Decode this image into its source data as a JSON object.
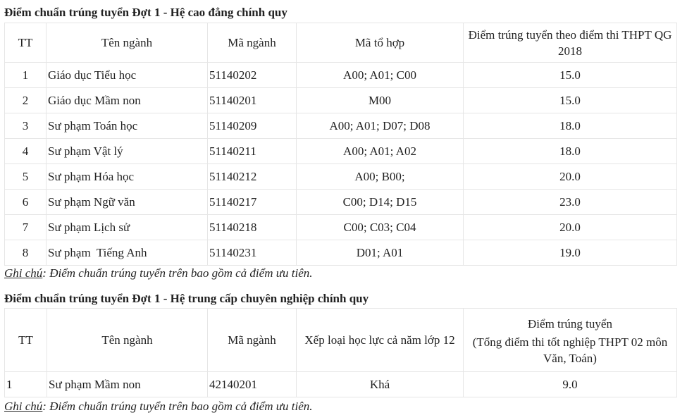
{
  "section1": {
    "title": "Điểm chuẩn trúng tuyển Đợt 1 - Hệ cao đẳng chính quy",
    "headers": [
      "TT",
      "Tên ngành",
      "Mã ngành",
      "Mã tổ hợp",
      "Điểm trúng tuyển theo điểm thi THPT QG 2018"
    ],
    "rows": [
      [
        "1",
        "Giáo dục Tiểu học",
        "51140202",
        "A00; A01; C00",
        "15.0"
      ],
      [
        "2",
        "Giáo dục Mầm non",
        "51140201",
        "M00",
        "15.0"
      ],
      [
        "3",
        "Sư phạm Toán học",
        "51140209",
        "A00; A01; D07; D08",
        "18.0"
      ],
      [
        "4",
        "Sư phạm Vật lý",
        "51140211",
        "A00; A01; A02",
        "18.0"
      ],
      [
        "5",
        "Sư phạm Hóa học",
        "51140212",
        "A00; B00;",
        "20.0"
      ],
      [
        "6",
        "Sư phạm Ngữ văn",
        "51140217",
        "C00; D14; D15",
        "23.0"
      ],
      [
        "7",
        "Sư phạm Lịch sử",
        "51140218",
        "C00; C03; C04",
        "20.0"
      ],
      [
        "8",
        "Sư phạm  Tiếng Anh",
        "51140231",
        "D01; A01",
        "19.0"
      ]
    ],
    "note_label": "Ghi chú",
    "note_text": ": Điểm chuẩn trúng tuyển trên bao gồm cả điểm ưu tiên."
  },
  "section2": {
    "title": "Điểm chuẩn trúng tuyển Đợt 1 - Hệ trung cấp chuyên nghiệp chính quy",
    "headers": [
      "TT",
      "Tên ngành",
      "Mã ngành",
      "Xếp loại học lực cả năm lớp 12",
      "Điểm trúng tuyển",
      "(Tổng điểm thi tốt nghiệp THPT 02 môn Văn, Toán)"
    ],
    "rows": [
      [
        "1",
        "Sư phạm Mầm non",
        "42140201",
        "Khá",
        "9.0"
      ]
    ],
    "note_label": "Ghi chú",
    "note_text": ": Điểm chuẩn trúng tuyển trên bao gồm cả điểm ưu tiên."
  }
}
